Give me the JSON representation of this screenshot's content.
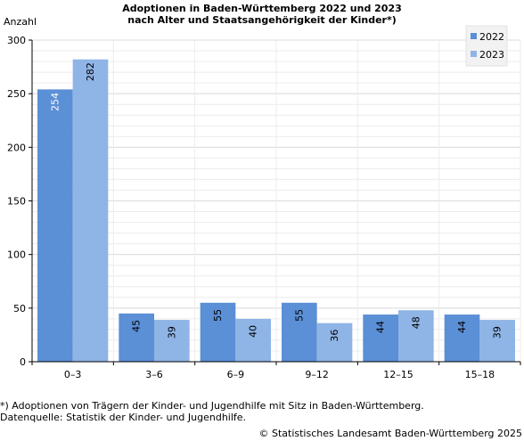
{
  "chart_data": {
    "type": "bar",
    "title": "Adoptionen in Baden-Württemberg 2022 und 2023",
    "subtitle": "nach Alter und Staatsangehörigkeit der Kinder*)",
    "ylabel": "Anzahl",
    "xlabel": "",
    "ylim": [
      0,
      300
    ],
    "yticks": [
      0,
      50,
      100,
      150,
      200,
      250,
      300
    ],
    "categories": [
      "0–3",
      "3–6",
      "6–9",
      "9–12",
      "12–15",
      "15–18"
    ],
    "series": [
      {
        "name": "2022",
        "color": "#5b8fd6",
        "values": [
          254,
          45,
          55,
          55,
          44,
          44
        ]
      },
      {
        "name": "2023",
        "color": "#8fb4e6",
        "values": [
          282,
          39,
          40,
          36,
          48,
          39
        ]
      }
    ],
    "grid": true,
    "legend": "top-right"
  },
  "footnotes": [
    "*) Adoptionen von Trägern der Kinder- und Jugendhilfe mit Sitz in Baden-Württemberg.",
    "Datenquelle: Statistik der Kinder- und Jugendhilfe."
  ],
  "copyright": "© Statistisches Landesamt Baden-Württemberg 2025"
}
